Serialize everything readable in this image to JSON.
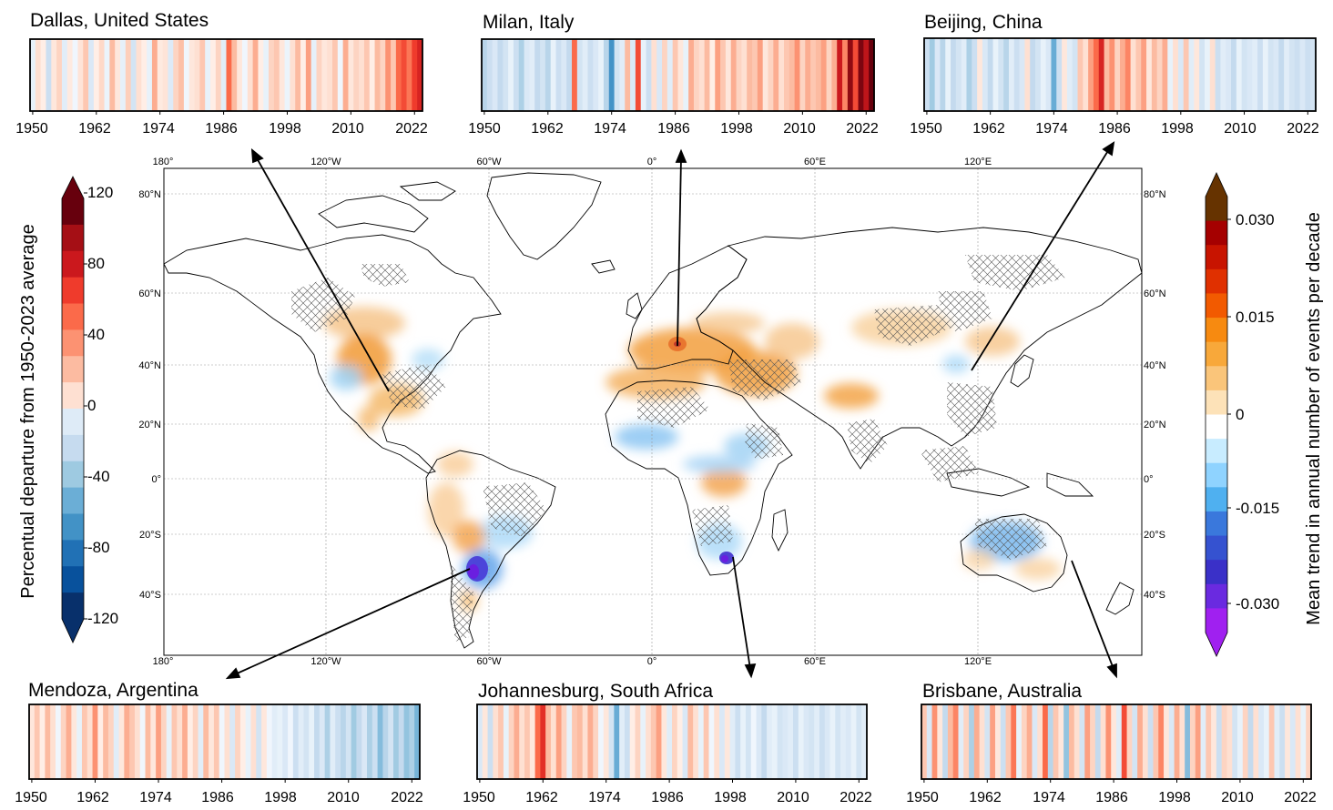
{
  "chart_data": {
    "type": "heatmap",
    "title": "",
    "map": {
      "type": "map",
      "description_layers": [
        "trend shading (orange = increasing, blue/purple = decreasing)",
        "hatching = not significant"
      ],
      "lon_ticks": [
        "180°",
        "120°W",
        "60°W",
        "0°",
        "60°E",
        "120°E"
      ],
      "lat_ticks": [
        "80°N",
        "60°N",
        "40°N",
        "20°N",
        "0°",
        "20°S",
        "40°S"
      ]
    },
    "left_colorbar": {
      "label": "Percentual departure from 1950-2023 average",
      "ticks": [
        "120",
        "80",
        "40",
        "0",
        "-40",
        "-80",
        "-120"
      ],
      "colors": [
        "#67000d",
        "#a50f15",
        "#cb181d",
        "#ef3b2c",
        "#fb6a4a",
        "#fc9272",
        "#fcbba1",
        "#fee0d2",
        "#deebf7",
        "#c6dbef",
        "#9ecae1",
        "#6baed6",
        "#4292c6",
        "#2171b5",
        "#08519c",
        "#08306b"
      ]
    },
    "right_colorbar": {
      "label": "Mean trend in annual number of events per decade",
      "ticks": [
        "0.030",
        "0.015",
        "0",
        "-0.015",
        "-0.030"
      ],
      "colors": [
        "#663300",
        "#a50000",
        "#c81400",
        "#e03000",
        "#f25a00",
        "#f78a10",
        "#f8a83a",
        "#fac57a",
        "#fde2b8",
        "#ffffff",
        "#c8ecff",
        "#8fd3ff",
        "#4fb0f0",
        "#3a78dc",
        "#3552d0",
        "#3a30c8",
        "#6a2ae0",
        "#a020f0"
      ]
    },
    "stripes_years": [
      "1950",
      "1962",
      "1974",
      "1986",
      "1998",
      "2010",
      "2022"
    ],
    "stripes": [
      {
        "city": "Dallas, United States",
        "values": [
          -10,
          15,
          5,
          -30,
          10,
          20,
          -15,
          8,
          -5,
          12,
          25,
          -20,
          5,
          18,
          -8,
          30,
          10,
          -12,
          22,
          -25,
          15,
          5,
          -10,
          35,
          8,
          12,
          -18,
          20,
          28,
          -5,
          10,
          15,
          25,
          -10,
          5,
          20,
          -15,
          60,
          30,
          10,
          -5,
          15,
          35,
          5,
          -10,
          20,
          25,
          10,
          -8,
          15,
          30,
          5,
          40,
          -12,
          20,
          10,
          15,
          25,
          -5,
          35,
          10,
          20,
          15,
          25,
          5,
          30,
          20,
          45,
          25,
          60,
          70,
          55,
          75,
          85
        ]
      },
      {
        "city": "Milan, Italy",
        "values": [
          -40,
          -30,
          -20,
          -35,
          -25,
          -10,
          -30,
          -45,
          -20,
          -15,
          -35,
          -25,
          -40,
          -10,
          -30,
          -20,
          -35,
          60,
          -25,
          -15,
          -30,
          -20,
          -10,
          -40,
          -85,
          -25,
          -15,
          30,
          -20,
          70,
          -10,
          -30,
          15,
          -20,
          20,
          -15,
          25,
          10,
          -10,
          35,
          20,
          15,
          30,
          5,
          40,
          25,
          10,
          35,
          20,
          15,
          30,
          25,
          40,
          10,
          20,
          35,
          15,
          25,
          30,
          45,
          20,
          35,
          25,
          30,
          40,
          20,
          35,
          90,
          50,
          110,
          70,
          115,
          95,
          125
        ]
      },
      {
        "city": "Beijing, China",
        "values": [
          -30,
          -50,
          -20,
          -40,
          -10,
          -35,
          -25,
          -15,
          -45,
          -30,
          10,
          -20,
          -35,
          -10,
          -25,
          -40,
          -15,
          -30,
          -20,
          15,
          -35,
          -25,
          -10,
          -20,
          -70,
          -30,
          10,
          -15,
          -25,
          25,
          15,
          40,
          60,
          85,
          30,
          45,
          20,
          35,
          50,
          15,
          25,
          40,
          10,
          30,
          20,
          35,
          -10,
          15,
          -20,
          25,
          -15,
          10,
          -25,
          -10,
          15,
          -30,
          -15,
          -20,
          -35,
          -10,
          -25,
          -20,
          -15,
          -30,
          -10,
          -25,
          -20,
          -35,
          -15,
          -25,
          -30,
          -20,
          -30,
          -25
        ]
      },
      {
        "city": "Mendoza, Argentina",
        "values": [
          10,
          25,
          5,
          30,
          15,
          -5,
          20,
          35,
          10,
          -10,
          25,
          15,
          45,
          5,
          30,
          20,
          -15,
          10,
          35,
          25,
          15,
          -5,
          30,
          10,
          40,
          20,
          -10,
          25,
          15,
          35,
          5,
          20,
          -15,
          30,
          10,
          25,
          -5,
          15,
          -20,
          20,
          5,
          -10,
          15,
          -25,
          10,
          -5,
          -15,
          -10,
          -20,
          -5,
          -30,
          -15,
          -25,
          -10,
          -35,
          -20,
          -45,
          -15,
          -30,
          -40,
          -25,
          -50,
          -35,
          -20,
          -45,
          -30,
          -60,
          -40,
          -25,
          -50,
          -35,
          -55,
          -45,
          -65
        ]
      },
      {
        "city": "Johannesburg, South Africa",
        "values": [
          -20,
          10,
          -30,
          15,
          25,
          -10,
          20,
          35,
          15,
          25,
          10,
          60,
          80,
          30,
          15,
          40,
          20,
          -10,
          25,
          30,
          15,
          35,
          20,
          -5,
          10,
          -25,
          -70,
          -15,
          -30,
          5,
          20,
          -10,
          15,
          25,
          40,
          10,
          -15,
          20,
          5,
          -20,
          30,
          15,
          -10,
          25,
          -5,
          15,
          -20,
          10,
          -15,
          -30,
          -10,
          -25,
          -5,
          -20,
          -35,
          -15,
          -10,
          -25,
          -20,
          -15,
          -30,
          -10,
          -20,
          -25,
          -15,
          -30,
          -20,
          -10,
          -25,
          -15,
          -20,
          -10,
          -25,
          -15
        ]
      },
      {
        "city": "Brisbane, Australia",
        "values": [
          25,
          -20,
          45,
          10,
          -35,
          30,
          50,
          -15,
          20,
          -45,
          35,
          15,
          -25,
          40,
          10,
          -30,
          25,
          55,
          -10,
          20,
          35,
          -20,
          15,
          60,
          -40,
          25,
          10,
          -55,
          30,
          15,
          -25,
          40,
          20,
          -35,
          15,
          45,
          10,
          -15,
          70,
          20,
          -25,
          35,
          15,
          -30,
          25,
          50,
          10,
          -20,
          35,
          15,
          -60,
          20,
          40,
          -15,
          25,
          10,
          -30,
          20,
          15,
          -25,
          -10,
          20,
          -35,
          15,
          -20,
          -10,
          25,
          -15,
          -30,
          10,
          -20,
          15,
          -10,
          20
        ]
      }
    ]
  }
}
